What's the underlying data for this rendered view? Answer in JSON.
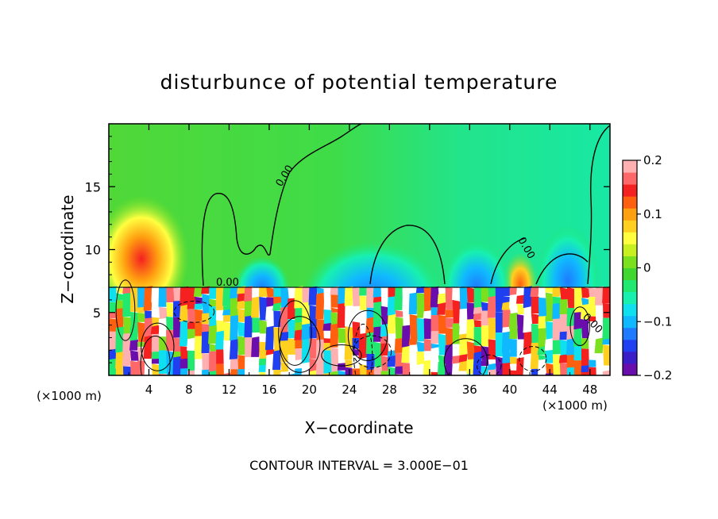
{
  "chart_data": {
    "type": "heatmap",
    "title": "disturbunce of potential temperature",
    "xlabel": "X−coordinate",
    "ylabel": "Z−coordinate",
    "x_unit_left": "(×1000 m)",
    "x_unit_right": "(×1000 m)",
    "x_ticks": [
      "4",
      "8",
      "12",
      "16",
      "20",
      "24",
      "28",
      "32",
      "36",
      "40",
      "44",
      "48"
    ],
    "y_ticks": [
      "5",
      "10",
      "15"
    ],
    "xlim": [
      0,
      50
    ],
    "ylim": [
      0,
      20
    ],
    "contour_interval_text": "CONTOUR INTERVAL = 3.000E−01",
    "contour_labels": [
      "0.00",
      "0.00",
      "0.00",
      "0.00"
    ],
    "colorbar": {
      "range": [
        -0.2,
        0.2
      ],
      "tick_labels": [
        "0.2",
        "0.1",
        "0",
        "−0.1",
        "−0.2"
      ],
      "colors": [
        "#6a0dad",
        "#3a1fc9",
        "#1f3ff0",
        "#1e7bff",
        "#10b8ff",
        "#0fe0f0",
        "#18f0b0",
        "#20e870",
        "#40d830",
        "#7be01e",
        "#c8f020",
        "#ffff40",
        "#ffd020",
        "#ffa010",
        "#ff6010",
        "#f52020",
        "#ff6868",
        "#ffb0b0"
      ]
    },
    "grid": false,
    "legend": "colorbar-right"
  }
}
